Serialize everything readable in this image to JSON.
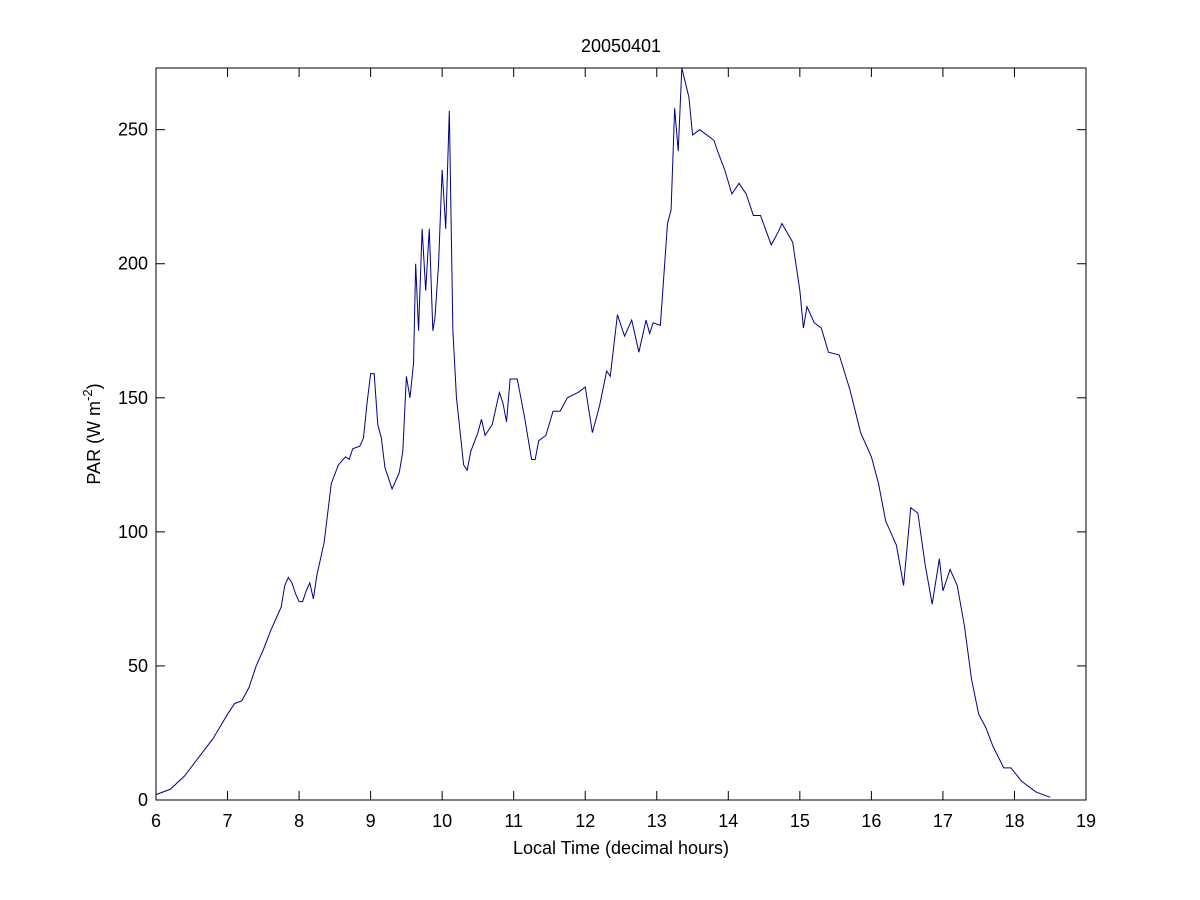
{
  "chart_data": {
    "type": "line",
    "title": "20050401",
    "xlabel": "Local Time (decimal hours)",
    "ylabel": {
      "text": "PAR (W m",
      "sup": "-2",
      "end": ")"
    },
    "xlim": [
      6,
      19
    ],
    "ylim": [
      0,
      273
    ],
    "xticks": [
      6,
      7,
      8,
      9,
      10,
      11,
      12,
      13,
      14,
      15,
      16,
      17,
      18,
      19
    ],
    "yticks": [
      0,
      50,
      100,
      150,
      200,
      250
    ],
    "grid": false,
    "series": [
      {
        "color": "#00008b",
        "x": [
          6.0,
          6.2,
          6.4,
          6.6,
          6.8,
          7.0,
          7.1,
          7.2,
          7.3,
          7.4,
          7.5,
          7.6,
          7.7,
          7.75,
          7.8,
          7.85,
          7.9,
          7.95,
          8.0,
          8.05,
          8.1,
          8.15,
          8.2,
          8.25,
          8.35,
          8.45,
          8.55,
          8.65,
          8.7,
          8.75,
          8.85,
          8.9,
          8.95,
          9.0,
          9.05,
          9.1,
          9.15,
          9.2,
          9.3,
          9.4,
          9.45,
          9.5,
          9.55,
          9.6,
          9.63,
          9.67,
          9.72,
          9.77,
          9.82,
          9.87,
          9.9,
          9.95,
          10.0,
          10.05,
          10.1,
          10.15,
          10.2,
          10.3,
          10.35,
          10.4,
          10.5,
          10.55,
          10.6,
          10.7,
          10.8,
          10.85,
          10.9,
          10.95,
          11.05,
          11.15,
          11.25,
          11.3,
          11.35,
          11.45,
          11.55,
          11.65,
          11.75,
          11.9,
          12.0,
          12.1,
          12.2,
          12.3,
          12.35,
          12.45,
          12.55,
          12.65,
          12.75,
          12.85,
          12.9,
          12.95,
          13.05,
          13.15,
          13.2,
          13.25,
          13.3,
          13.35,
          13.45,
          13.5,
          13.6,
          13.8,
          13.85,
          13.95,
          14.05,
          14.15,
          14.25,
          14.35,
          14.45,
          14.6,
          14.7,
          14.75,
          14.9,
          15.0,
          15.05,
          15.1,
          15.2,
          15.3,
          15.4,
          15.55,
          15.7,
          15.85,
          16.0,
          16.1,
          16.2,
          16.3,
          16.35,
          16.45,
          16.55,
          16.65,
          16.75,
          16.85,
          16.95,
          17.0,
          17.1,
          17.2,
          17.3,
          17.4,
          17.5,
          17.6,
          17.7,
          17.85,
          17.95,
          18.1,
          18.3,
          18.5
        ],
        "values": [
          2,
          4,
          9,
          16,
          23,
          32,
          36,
          37,
          42,
          50,
          56,
          63,
          69,
          72,
          80,
          83,
          81,
          77,
          74,
          74,
          78,
          81,
          75,
          84,
          96,
          118,
          125,
          128,
          127,
          131,
          132,
          135,
          148,
          159,
          159,
          140,
          135,
          124,
          116,
          122,
          130,
          158,
          150,
          163,
          200,
          175,
          213,
          190,
          213,
          175,
          180,
          200,
          235,
          213,
          257,
          175,
          150,
          125,
          123,
          130,
          137,
          142,
          136,
          140,
          152,
          148,
          141,
          157,
          157,
          143,
          127,
          127,
          134,
          136,
          145,
          145,
          150,
          152,
          154,
          137,
          147,
          160,
          158,
          181,
          173,
          179,
          167,
          179,
          174,
          178,
          177,
          215,
          220,
          258,
          242,
          273,
          262,
          248,
          250,
          246,
          242,
          235,
          226,
          230,
          226,
          218,
          218,
          207,
          212,
          215,
          208,
          190,
          176,
          184,
          178,
          176,
          167,
          166,
          153,
          137,
          128,
          118,
          104,
          98,
          95,
          80,
          109,
          107,
          88,
          73,
          90,
          78,
          86,
          80,
          65,
          45,
          32,
          27,
          20,
          12,
          12,
          7,
          3,
          1
        ]
      }
    ]
  }
}
